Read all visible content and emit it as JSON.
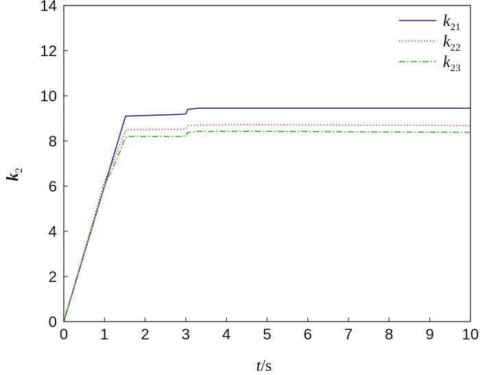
{
  "chart_data": {
    "type": "line",
    "xlabel": {
      "italic": "t",
      "rest": "/s"
    },
    "ylabel": {
      "main": "k",
      "sub": "2"
    },
    "xlim": [
      0,
      10
    ],
    "ylim": [
      0,
      14
    ],
    "xticks": [
      0,
      1,
      2,
      3,
      4,
      5,
      6,
      7,
      8,
      9,
      10
    ],
    "yticks": [
      0,
      2,
      4,
      6,
      8,
      10,
      12,
      14
    ],
    "grid": false,
    "legend_position": "top-right",
    "series": [
      {
        "name": "k21",
        "label_main": "k",
        "label_sub": "21",
        "color": "#1f2a7a",
        "dash": "solid",
        "x": [
          0,
          1.52,
          2.9,
          3.0,
          3.05,
          3.3,
          10
        ],
        "y": [
          0,
          9.1,
          9.18,
          9.2,
          9.4,
          9.45,
          9.45
        ]
      },
      {
        "name": "k22",
        "label_main": "k",
        "label_sub": "22",
        "color": "#e32b2b",
        "dash": "dotted",
        "x": [
          0,
          1.0,
          1.4,
          1.48,
          1.55,
          2.9,
          3.0,
          3.05,
          3.3,
          4.5,
          10
        ],
        "y": [
          0,
          6.2,
          7.9,
          8.3,
          8.5,
          8.52,
          8.55,
          8.68,
          8.7,
          8.72,
          8.68
        ]
      },
      {
        "name": "k23",
        "label_main": "k",
        "label_sub": "23",
        "color": "#3aa62a",
        "dash": "dashdot",
        "x": [
          0,
          1.0,
          1.4,
          1.48,
          1.55,
          2.9,
          3.0,
          3.05,
          3.3,
          4.5,
          10
        ],
        "y": [
          0,
          6.0,
          7.6,
          8.0,
          8.2,
          8.2,
          8.22,
          8.38,
          8.42,
          8.43,
          8.38
        ]
      }
    ]
  }
}
